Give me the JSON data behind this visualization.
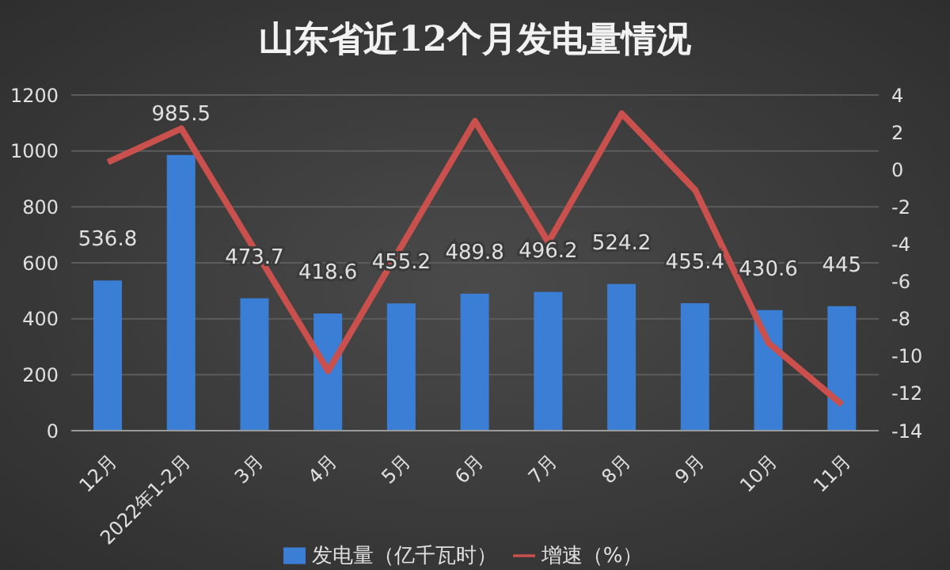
{
  "chart_data": {
    "type": "bar",
    "title": "山东省近12个月发电量情况",
    "categories": [
      "12月",
      "2022年1-2月",
      "3月",
      "4月",
      "5月",
      "6月",
      "7月",
      "8月",
      "9月",
      "10月",
      "11月"
    ],
    "series": [
      {
        "name": "发电量（亿千瓦时）",
        "color": "#3a7fd5",
        "values": [
          536.8,
          985.5,
          473.7,
          418.6,
          455.2,
          489.8,
          496.2,
          524.2,
          455.4,
          430.6,
          445
        ],
        "data_labels": true
      },
      {
        "name": "增速（%）",
        "type": "line",
        "axis": "y2",
        "color": "#c9504d",
        "values": [
          0.4,
          2.2,
          -4.3,
          -10.8,
          -4.1,
          2.6,
          -3.9,
          3.0,
          -1.1,
          -9.3,
          -12.6
        ]
      }
    ],
    "ylim": [
      0,
      1200
    ],
    "yticks": [
      0,
      200,
      400,
      600,
      800,
      1000,
      1200
    ],
    "y2lim": [
      -14,
      4
    ],
    "y2ticks": [
      -14,
      -12,
      -10,
      -8,
      -6,
      -4,
      -2,
      0,
      2,
      4
    ],
    "grid": "y",
    "legend": "bottom",
    "marker": "none"
  }
}
